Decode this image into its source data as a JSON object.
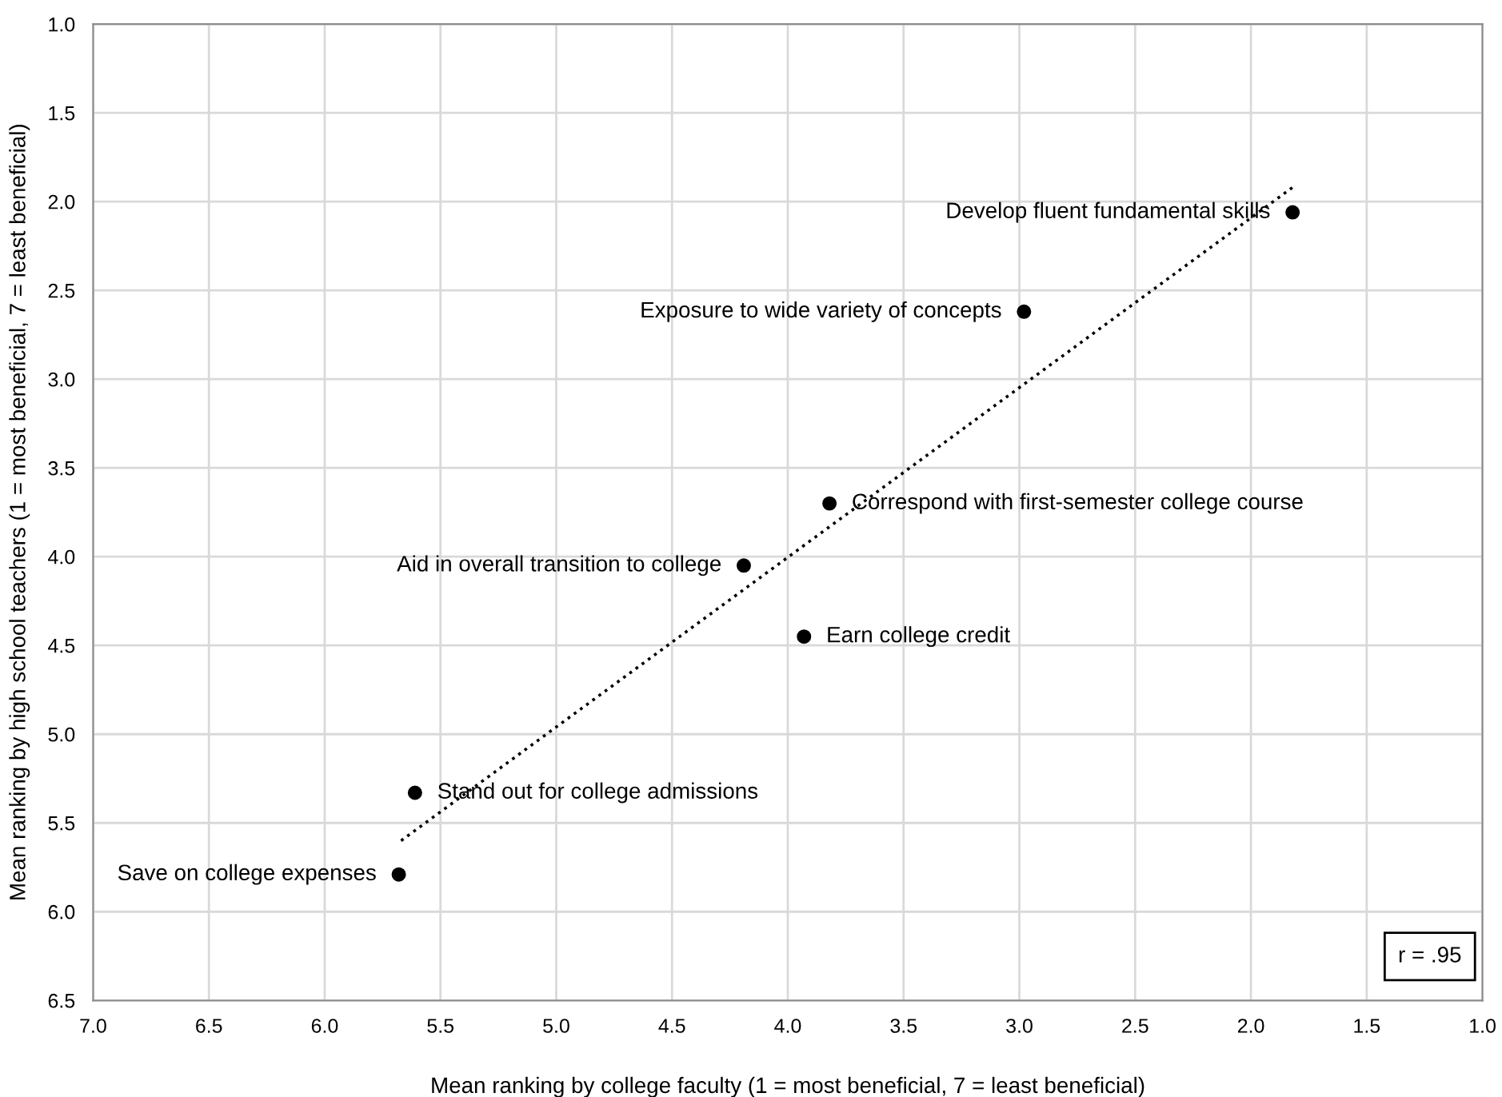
{
  "chart_data": {
    "type": "scatter",
    "xlabel": "Mean ranking by college faculty (1 = most beneficial, 7 = least beneficial)",
    "ylabel": "Mean ranking by high school teachers (1 = most beneficial, 7 = least beneficial)",
    "series": [
      {
        "color": "#000000",
        "marker": "circle",
        "x": [
          1.82,
          2.98,
          3.82,
          4.19,
          3.93,
          5.61,
          5.68
        ],
        "values": [
          2.06,
          2.62,
          3.7,
          4.05,
          4.45,
          5.33,
          5.79
        ]
      },
      {
        "type": "line",
        "color": "#000000",
        "line_style": "dotted",
        "marker": "none",
        "x": [
          5.67,
          1.81
        ],
        "values": [
          5.6,
          1.91
        ]
      }
    ],
    "annotations": [
      {
        "text": "Develop fluent fundamental skills",
        "x": 1.82,
        "y": 2.06
      },
      {
        "text": "Exposure to wide variety of concepts",
        "x": 2.98,
        "y": 2.62
      },
      {
        "text": "Correspond with first-semester college course",
        "x": 3.82,
        "y": 3.7
      },
      {
        "text": "Aid in overall transition to college",
        "x": 4.19,
        "y": 4.05
      },
      {
        "text": "Earn college credit",
        "x": 3.93,
        "y": 4.45
      },
      {
        "text": "Stand out for college admissions",
        "x": 5.61,
        "y": 5.33
      },
      {
        "text": "Save on college expenses",
        "x": 5.68,
        "y": 5.79
      },
      "r = .95"
    ],
    "xlim": [
      7.0,
      1.0
    ],
    "xticks": [
      {
        "value": 7.0,
        "label": "7.0"
      },
      {
        "value": 6.5,
        "label": "6.5"
      },
      {
        "value": 6.0,
        "label": "6.0"
      },
      {
        "value": 5.5,
        "label": "5.5"
      },
      {
        "value": 5.0,
        "label": "5.0"
      },
      {
        "value": 4.5,
        "label": "4.5"
      },
      {
        "value": 4.0,
        "label": "4.0"
      },
      {
        "value": 3.5,
        "label": "3.5"
      },
      {
        "value": 3.0,
        "label": "3.0"
      },
      {
        "value": 2.5,
        "label": "2.5"
      },
      {
        "value": 2.0,
        "label": "2.0"
      },
      {
        "value": 1.5,
        "label": "1.5"
      },
      {
        "value": 1.0,
        "label": "1.0"
      }
    ],
    "ylim": [
      6.5,
      1.0
    ],
    "yticks": [
      {
        "value": 1.0,
        "label": "1.0"
      },
      {
        "value": 1.5,
        "label": "1.5"
      },
      {
        "value": 2.0,
        "label": "2.0"
      },
      {
        "value": 2.5,
        "label": "2.5"
      },
      {
        "value": 3.0,
        "label": "3.0"
      },
      {
        "value": 3.5,
        "label": "3.5"
      },
      {
        "value": 4.0,
        "label": "4.0"
      },
      {
        "value": 4.5,
        "label": "4.5"
      },
      {
        "value": 5.0,
        "label": "5.0"
      },
      {
        "value": 5.5,
        "label": "5.5"
      },
      {
        "value": 6.0,
        "label": "6.0"
      },
      {
        "value": 6.5,
        "label": "6.5"
      }
    ],
    "grid": true,
    "legend": false
  }
}
